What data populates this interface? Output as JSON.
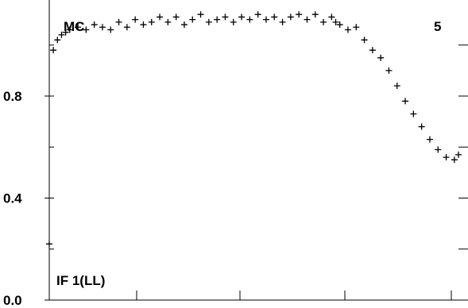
{
  "chart_data": {
    "type": "scatter",
    "title": "",
    "xlabel": "",
    "ylabel": "",
    "ylim": [
      0.0,
      1.1
    ],
    "y_ticks_labeled": [
      "0.0",
      "0.4",
      "0.8"
    ],
    "y_ticks_values": [
      0.0,
      0.4,
      0.8
    ],
    "annotations": {
      "top_left": "MC",
      "top_right": "5",
      "bottom_left": "IF 1(LL)"
    },
    "grid": false,
    "marker": "plus",
    "series": [
      {
        "color": "#000000",
        "x": [
          0.0,
          0.01,
          0.02,
          0.03,
          0.04,
          0.05,
          0.07,
          0.09,
          0.11,
          0.13,
          0.15,
          0.17,
          0.19,
          0.21,
          0.23,
          0.25,
          0.27,
          0.29,
          0.31,
          0.33,
          0.35,
          0.37,
          0.39,
          0.41,
          0.43,
          0.45,
          0.47,
          0.49,
          0.51,
          0.53,
          0.55,
          0.57,
          0.59,
          0.61,
          0.63,
          0.65,
          0.67,
          0.69,
          0.7,
          0.71,
          0.73,
          0.75,
          0.77,
          0.79,
          0.81,
          0.83,
          0.85,
          0.87,
          0.89,
          0.91,
          0.93,
          0.95,
          0.97,
          0.99,
          1.0
        ],
        "y": [
          0.22,
          0.98,
          1.02,
          1.04,
          1.05,
          1.06,
          1.07,
          1.06,
          1.08,
          1.07,
          1.06,
          1.09,
          1.07,
          1.1,
          1.08,
          1.09,
          1.11,
          1.09,
          1.11,
          1.08,
          1.1,
          1.12,
          1.09,
          1.1,
          1.11,
          1.09,
          1.11,
          1.1,
          1.12,
          1.1,
          1.11,
          1.09,
          1.11,
          1.12,
          1.1,
          1.12,
          1.09,
          1.11,
          1.09,
          1.08,
          1.06,
          1.07,
          1.02,
          0.98,
          0.95,
          0.9,
          0.84,
          0.78,
          0.73,
          0.68,
          0.63,
          0.59,
          0.56,
          0.55,
          0.57
        ]
      }
    ]
  }
}
